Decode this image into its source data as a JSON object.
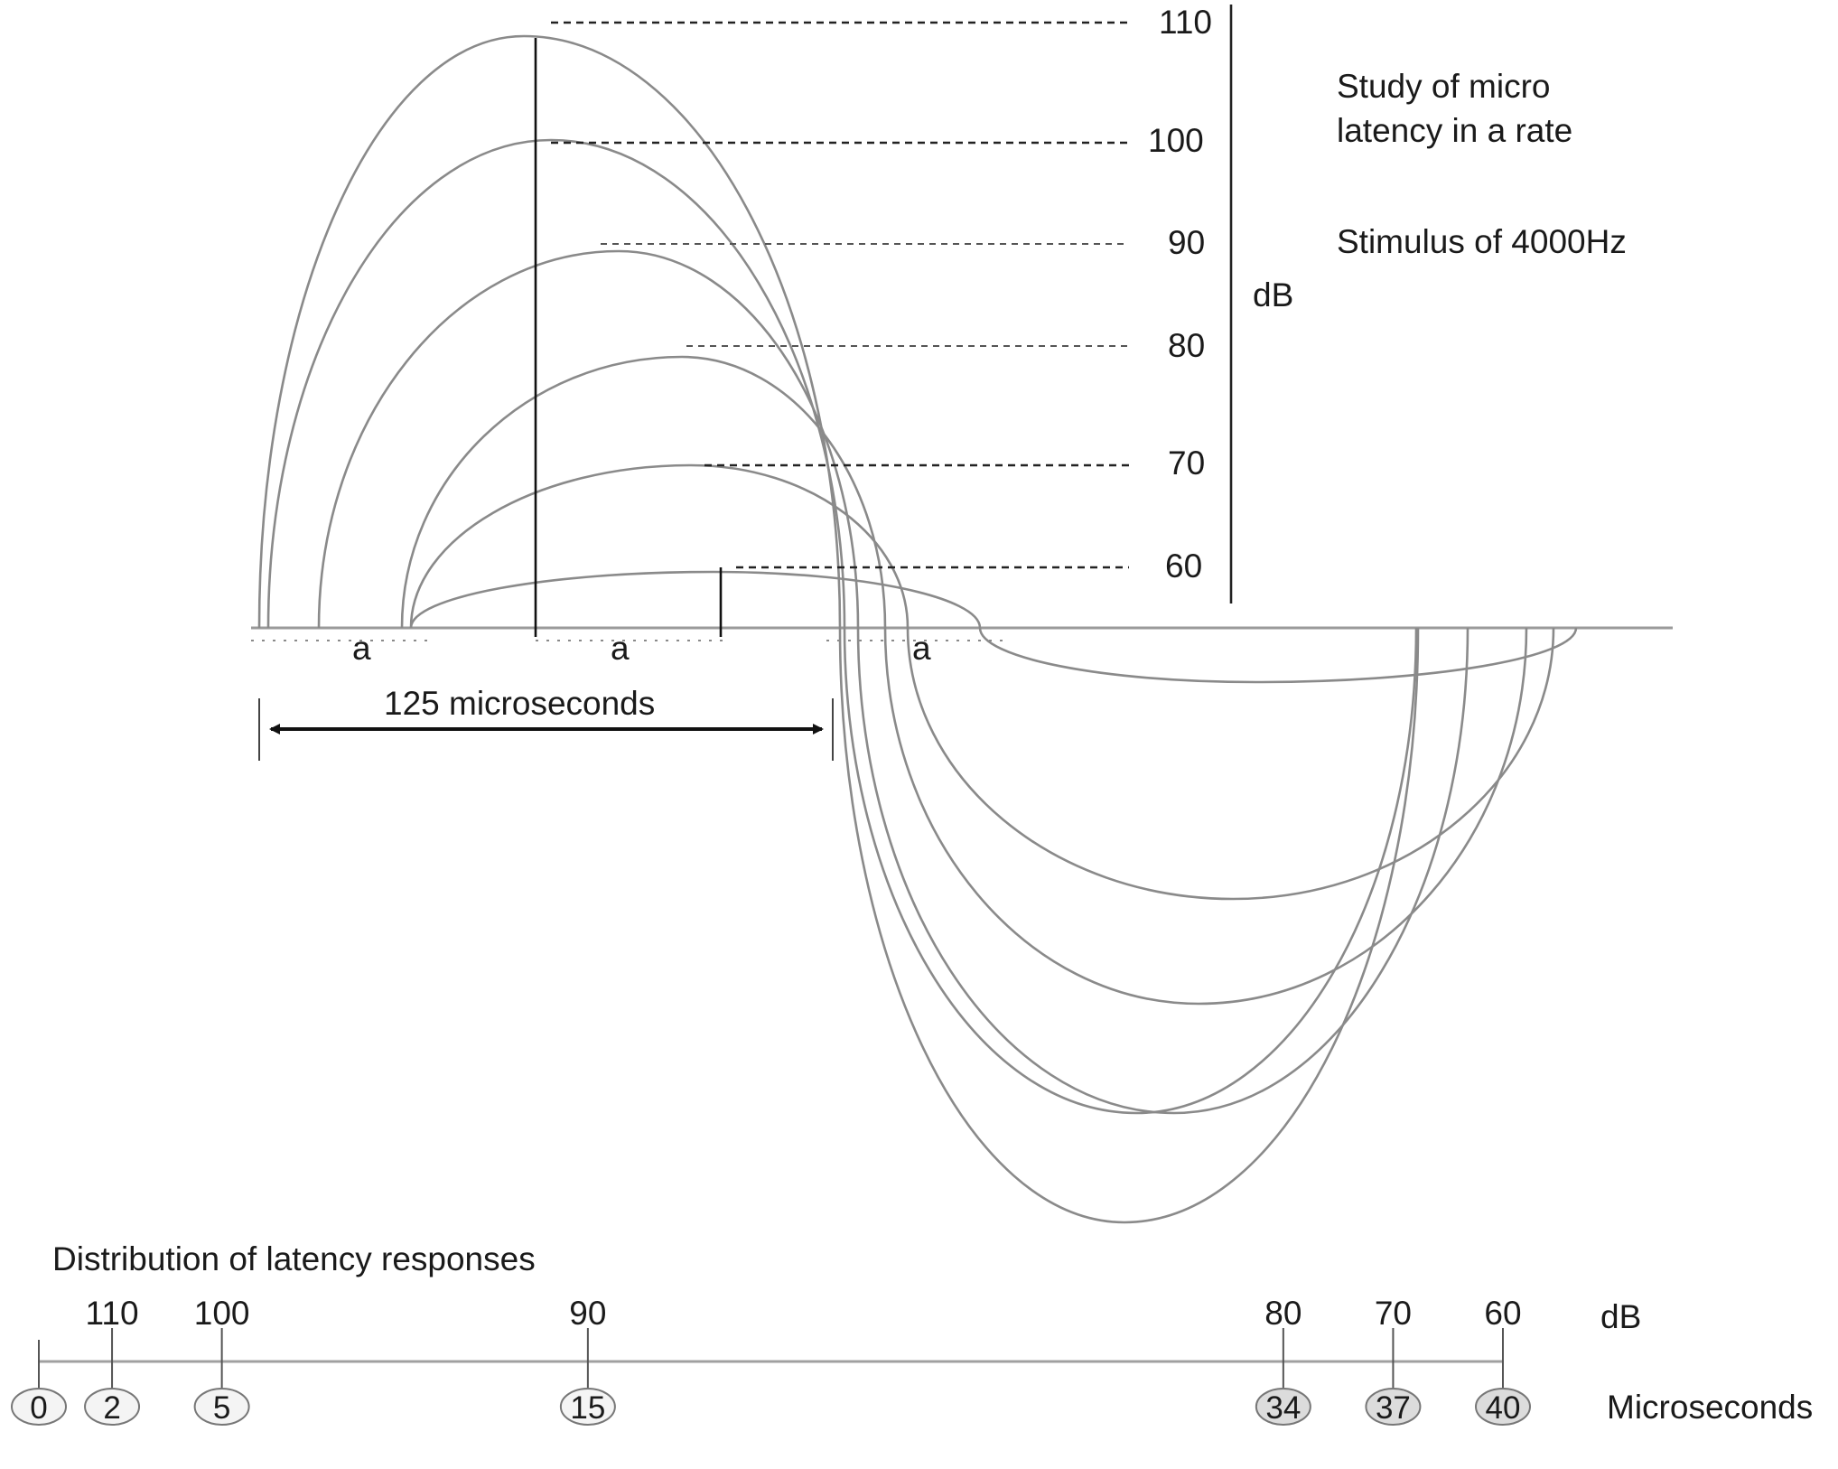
{
  "diagram": {
    "title_lines": [
      "Study of micro",
      "latency in a rate"
    ],
    "stimulus": "Stimulus of 4000Hz",
    "db_unit": "dB",
    "level_labels": [
      "110",
      "100",
      "90",
      "80",
      "70",
      "60"
    ],
    "segment_label": "a",
    "period_label": "125 microseconds"
  },
  "distribution": {
    "heading": "Distribution of latency responses",
    "db_unit": "dB",
    "time_unit": "Microseconds",
    "db_values": [
      "110",
      "100",
      "90",
      "80",
      "70",
      "60"
    ],
    "latencies": [
      "0",
      "2",
      "5",
      "15",
      "34",
      "37",
      "40"
    ]
  }
}
